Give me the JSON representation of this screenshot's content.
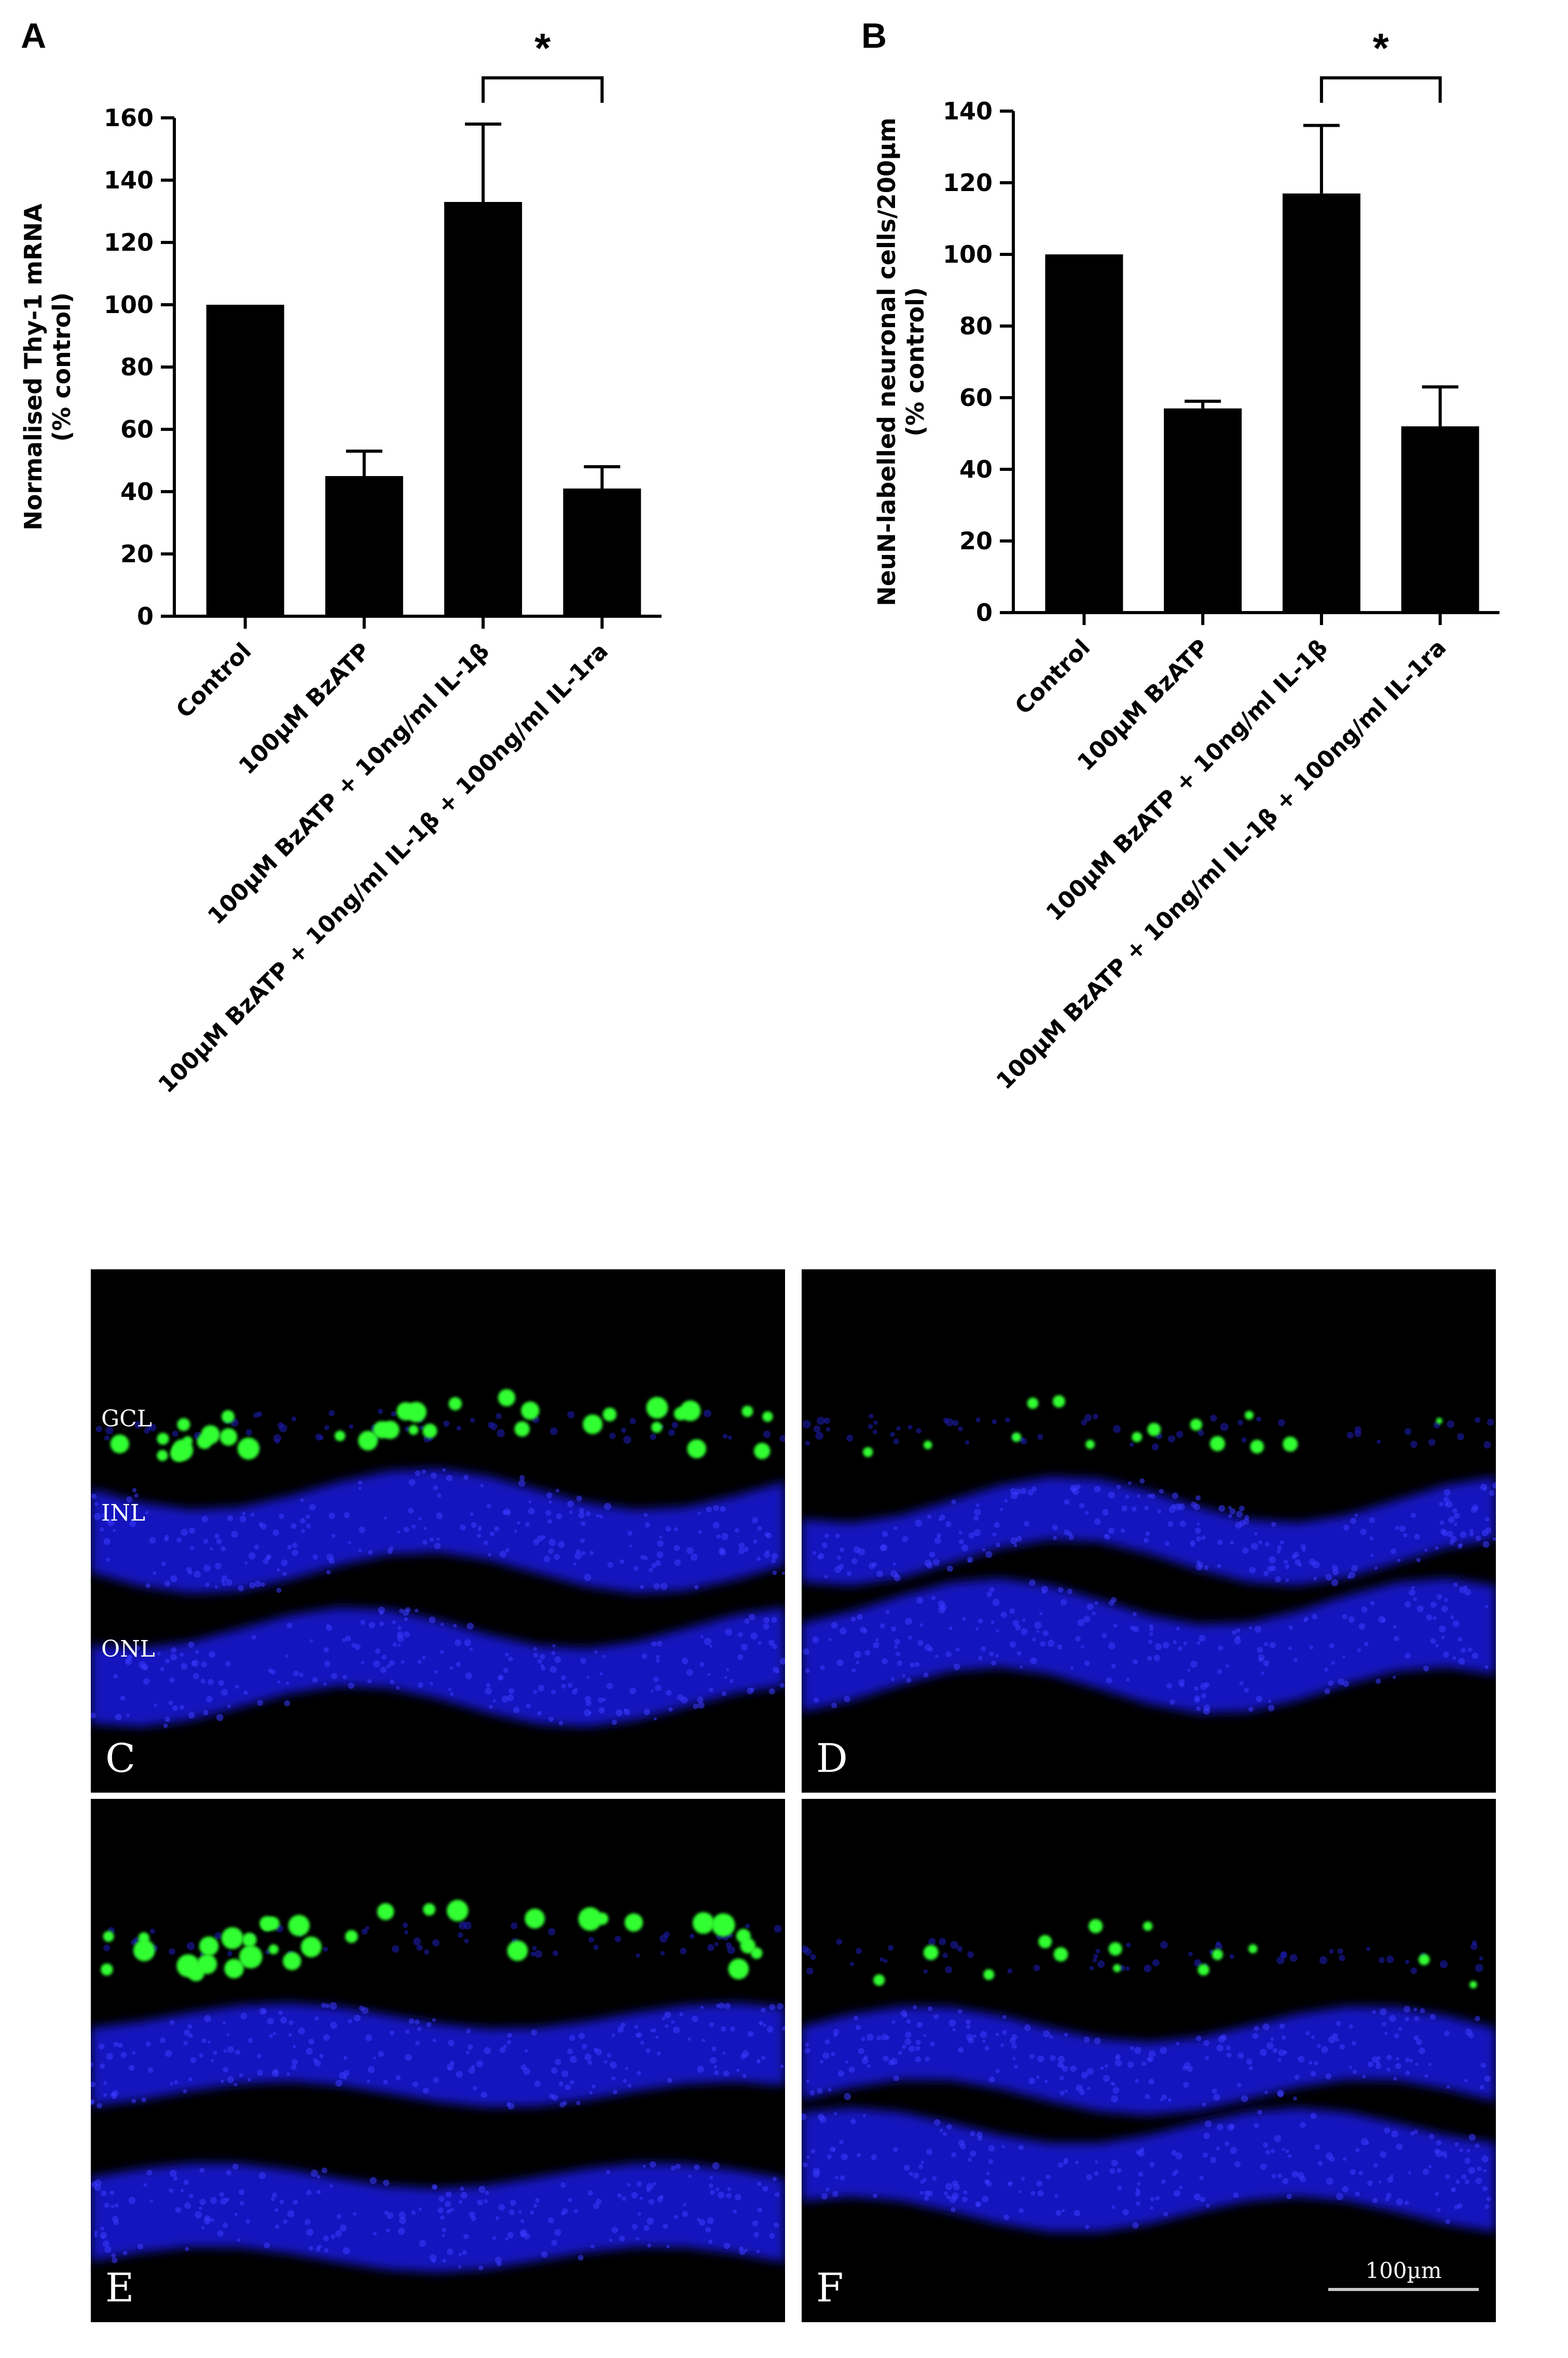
{
  "chart_data": [
    {
      "panel": "A",
      "type": "bar",
      "categories": [
        "Control",
        "100µM BzATP",
        "100µM BzATP + 10ng/ml IL-1β",
        "100µM BzATP + 10ng/ml IL-1β + 100ng/ml IL-1ra"
      ],
      "values": [
        100,
        45,
        133,
        41
      ],
      "error_upper": [
        0,
        8,
        25,
        7
      ],
      "ylabel": [
        "Normalised Thy-1 mRNA",
        "(% control)"
      ],
      "ylim": [
        0,
        160
      ],
      "yticks": [
        0,
        20,
        40,
        60,
        80,
        100,
        120,
        140,
        160
      ],
      "significance": {
        "from": 2,
        "to": 3,
        "label": "*"
      },
      "bar_color": "#000000"
    },
    {
      "panel": "B",
      "type": "bar",
      "categories": [
        "Control",
        "100µM BzATP",
        "100µM BzATP + 10ng/ml IL-1β",
        "100µM BzATP + 10ng/ml IL-1β + 100ng/ml IL-1ra"
      ],
      "values": [
        100,
        57,
        117,
        52
      ],
      "error_upper": [
        0,
        2,
        19,
        11
      ],
      "ylabel": [
        "NeuN-labelled neuronal cells/200µm",
        "(% control)"
      ],
      "ylim": [
        0,
        140
      ],
      "yticks": [
        0,
        20,
        40,
        60,
        80,
        100,
        120,
        140
      ],
      "significance": {
        "from": 2,
        "to": 3,
        "label": "*"
      },
      "bar_color": "#000000"
    }
  ],
  "micrographs": {
    "panels": [
      {
        "letter": "C",
        "layers": [
          "GCL",
          "INL",
          "ONL"
        ],
        "green_density": "high"
      },
      {
        "letter": "D",
        "layers": [],
        "green_density": "low"
      },
      {
        "letter": "E",
        "layers": [],
        "green_density": "high"
      },
      {
        "letter": "F",
        "layers": [],
        "green_density": "low"
      }
    ],
    "scale_bar": "100µm",
    "stain_colors": {
      "nuclei": "#1a1aff",
      "neun": "#33ff33",
      "background": "#000000"
    }
  }
}
